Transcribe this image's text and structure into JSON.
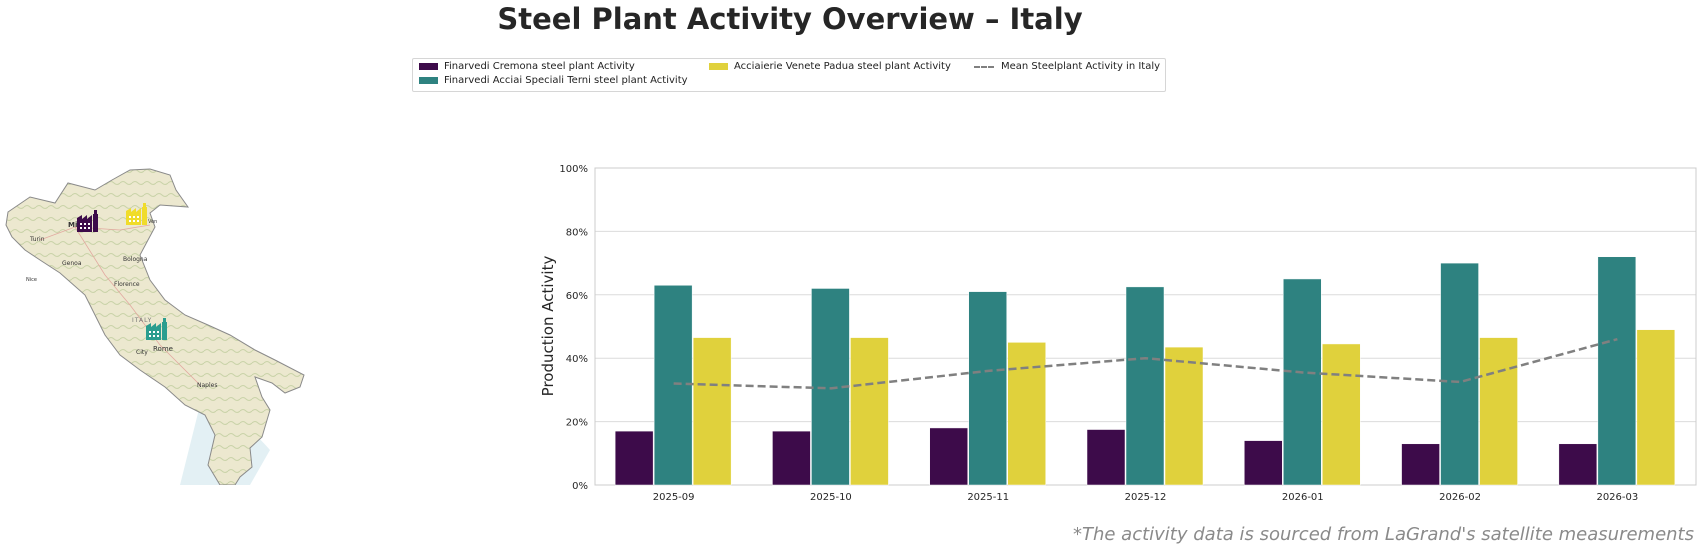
{
  "title": "Steel Plant Activity Overview – Italy",
  "footnote": "*The activity data is sourced from LaGrand's satellite measurements",
  "legend": {
    "items": [
      {
        "label": "Finarvedi Cremona steel plant Activity",
        "color": "#3d0b4a",
        "kind": "bar"
      },
      {
        "label": "Finarvedi Acciai Speciali Terni steel plant Activity",
        "color": "#2e8280",
        "kind": "bar"
      },
      {
        "label": "Acciaierie Venete Padua steel plant Activity",
        "color": "#e0d13c",
        "kind": "bar"
      },
      {
        "label": "Mean Steelplant Activity in Italy",
        "color": "#808080",
        "kind": "dashed-line"
      }
    ]
  },
  "map": {
    "labels": {
      "milan": "Milan",
      "turin": "Turin",
      "genoa": "Genoa",
      "bologna": "Bologna",
      "florence": "Florence",
      "italy": "ITALY",
      "rome": "Rome",
      "city": "City",
      "naples": "Naples",
      "ven": "Ven",
      "nice": "Nice"
    },
    "markers": [
      {
        "plant": "Finarvedi Cremona",
        "color": "#3d0b4a",
        "icon": "factory-icon"
      },
      {
        "plant": "Acciaierie Venete Padua",
        "color": "#f0dc2a",
        "icon": "factory-icon"
      },
      {
        "plant": "Finarvedi Acciai Speciali Terni",
        "color": "#2a9d8f",
        "icon": "factory-icon"
      }
    ]
  },
  "chart_data": {
    "type": "bar",
    "ylabel": "Production Activity",
    "xlabel": "",
    "ylim": [
      0,
      100
    ],
    "yticks": [
      "0%",
      "20%",
      "40%",
      "60%",
      "80%",
      "100%"
    ],
    "grid": true,
    "categories": [
      "2025-09",
      "2025-10",
      "2025-11",
      "2025-12",
      "2026-01",
      "2026-02",
      "2026-03"
    ],
    "series": [
      {
        "name": "Finarvedi Cremona steel plant Activity",
        "color": "#3d0b4a",
        "values": [
          17,
          17,
          18,
          17.5,
          14,
          13,
          13
        ]
      },
      {
        "name": "Finarvedi Acciai Speciali Terni steel plant Activity",
        "color": "#2e8280",
        "values": [
          63,
          62,
          61,
          62.5,
          65,
          70,
          72
        ]
      },
      {
        "name": "Acciaierie Venete Padua steel plant Activity",
        "color": "#e0d13c",
        "values": [
          46.5,
          46.5,
          45,
          43.5,
          44.5,
          46.5,
          49
        ]
      }
    ],
    "line": {
      "name": "Mean Steelplant Activity in Italy",
      "color": "#808080",
      "style": "dashed",
      "values": [
        32,
        30.5,
        36,
        40,
        35.5,
        32.5,
        46
      ]
    }
  }
}
